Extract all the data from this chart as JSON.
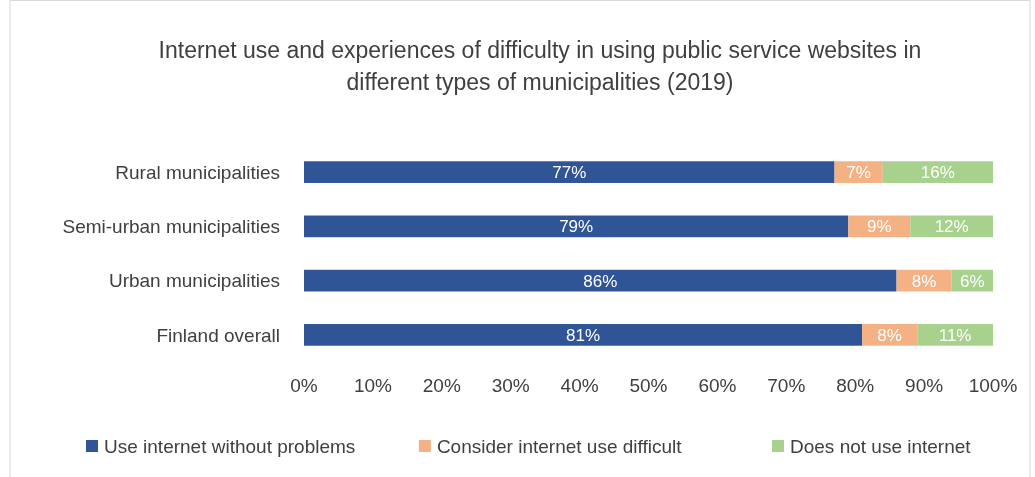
{
  "chart_data": {
    "type": "bar",
    "orientation": "horizontal",
    "stacked": true,
    "title": "Internet use and experiences of difficulty in using public service websites in different types of municipalities (2019)",
    "categories": [
      "Rural municipalities",
      "Semi-urban municipalities",
      "Urban municipalities",
      "Finland overall"
    ],
    "series": [
      {
        "name": "Use internet without problems",
        "color": "#2f5597",
        "values": [
          77,
          79,
          86,
          81
        ],
        "value_labels": [
          "77%",
          "79%",
          "86%",
          "81%"
        ]
      },
      {
        "name": "Consider internet use difficult",
        "color": "#f4b183",
        "values": [
          7,
          9,
          8,
          8
        ],
        "value_labels": [
          "7%",
          "9%",
          "8%",
          "8%"
        ]
      },
      {
        "name": "Does not use internet",
        "color": "#a9d18e",
        "values": [
          16,
          12,
          6,
          11
        ],
        "value_labels": [
          "16%",
          "12%",
          "6%",
          "11%"
        ]
      }
    ],
    "xlim": [
      0,
      100
    ],
    "xticks": [
      {
        "value": 0,
        "label": "0%"
      },
      {
        "value": 10,
        "label": "10%"
      },
      {
        "value": 20,
        "label": "20%"
      },
      {
        "value": 30,
        "label": "30%"
      },
      {
        "value": 40,
        "label": "40%"
      },
      {
        "value": 50,
        "label": "50%"
      },
      {
        "value": 60,
        "label": "60%"
      },
      {
        "value": 70,
        "label": "70%"
      },
      {
        "value": 80,
        "label": "80%"
      },
      {
        "value": 90,
        "label": "90%"
      },
      {
        "value": 100,
        "label": "100%"
      }
    ],
    "grid": false,
    "legend": "bottom"
  }
}
